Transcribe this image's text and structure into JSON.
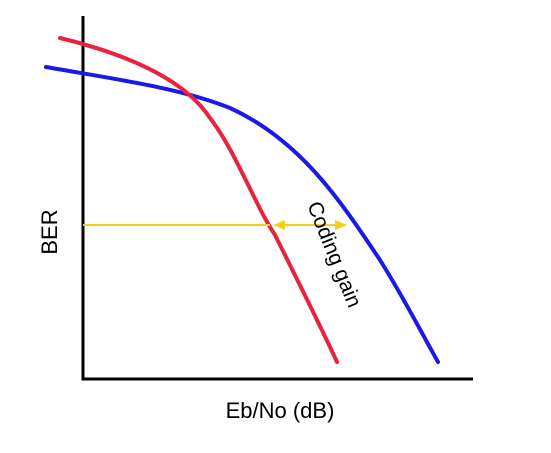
{
  "chart_data": {
    "type": "line",
    "xlabel": "Eb/No (dB)",
    "ylabel": "BER",
    "annotation": "Coding gain",
    "grid": false,
    "series": [
      {
        "color": "#e8233d"
      },
      {
        "color": "#1a1ae6"
      }
    ]
  },
  "colors": {
    "axis": "#000000",
    "arrow": "#f5cf19",
    "coded_curve": "#e8233d",
    "uncoded_curve": "#1a1ae6"
  }
}
